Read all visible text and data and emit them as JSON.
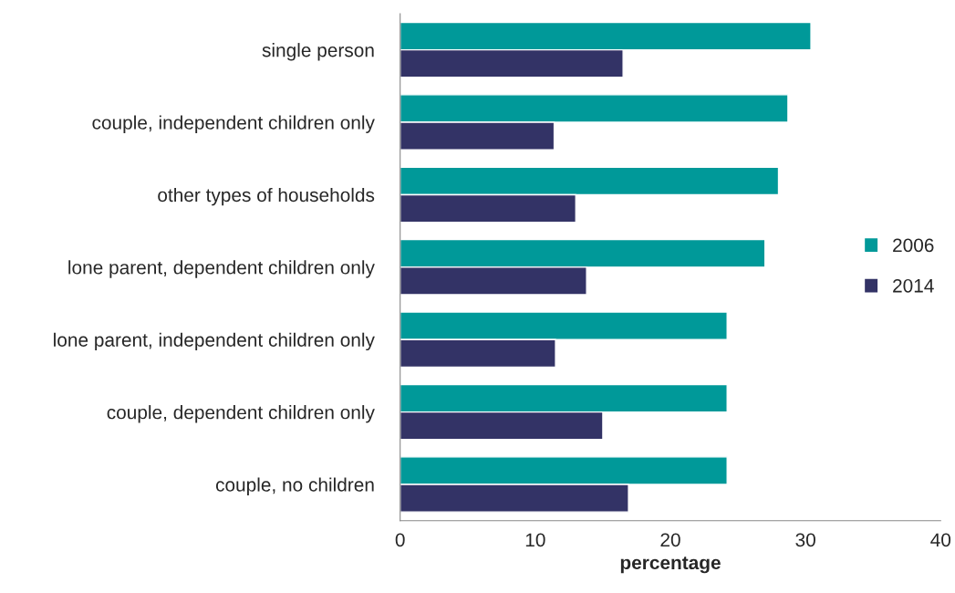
{
  "chart_data": {
    "type": "bar",
    "orientation": "horizontal",
    "xlabel": "percentage",
    "categories": [
      "single person",
      "couple, independent children only",
      "other types of households",
      "lone parent, dependent children only",
      "lone parent, independent children only",
      "couple, dependent children only",
      "couple, no children"
    ],
    "series": [
      {
        "name": "2006",
        "color": "#009999",
        "values": [
          30.4,
          28.7,
          28.0,
          27.0,
          24.2,
          24.2,
          24.2
        ]
      },
      {
        "name": "2014",
        "color": "#333366",
        "values": [
          16.5,
          11.4,
          13.0,
          13.8,
          11.5,
          15.0,
          16.9
        ]
      }
    ],
    "xlim": [
      0,
      40
    ],
    "xticks": [
      0,
      10,
      20,
      30,
      40
    ],
    "grid": false,
    "legend": "right"
  }
}
